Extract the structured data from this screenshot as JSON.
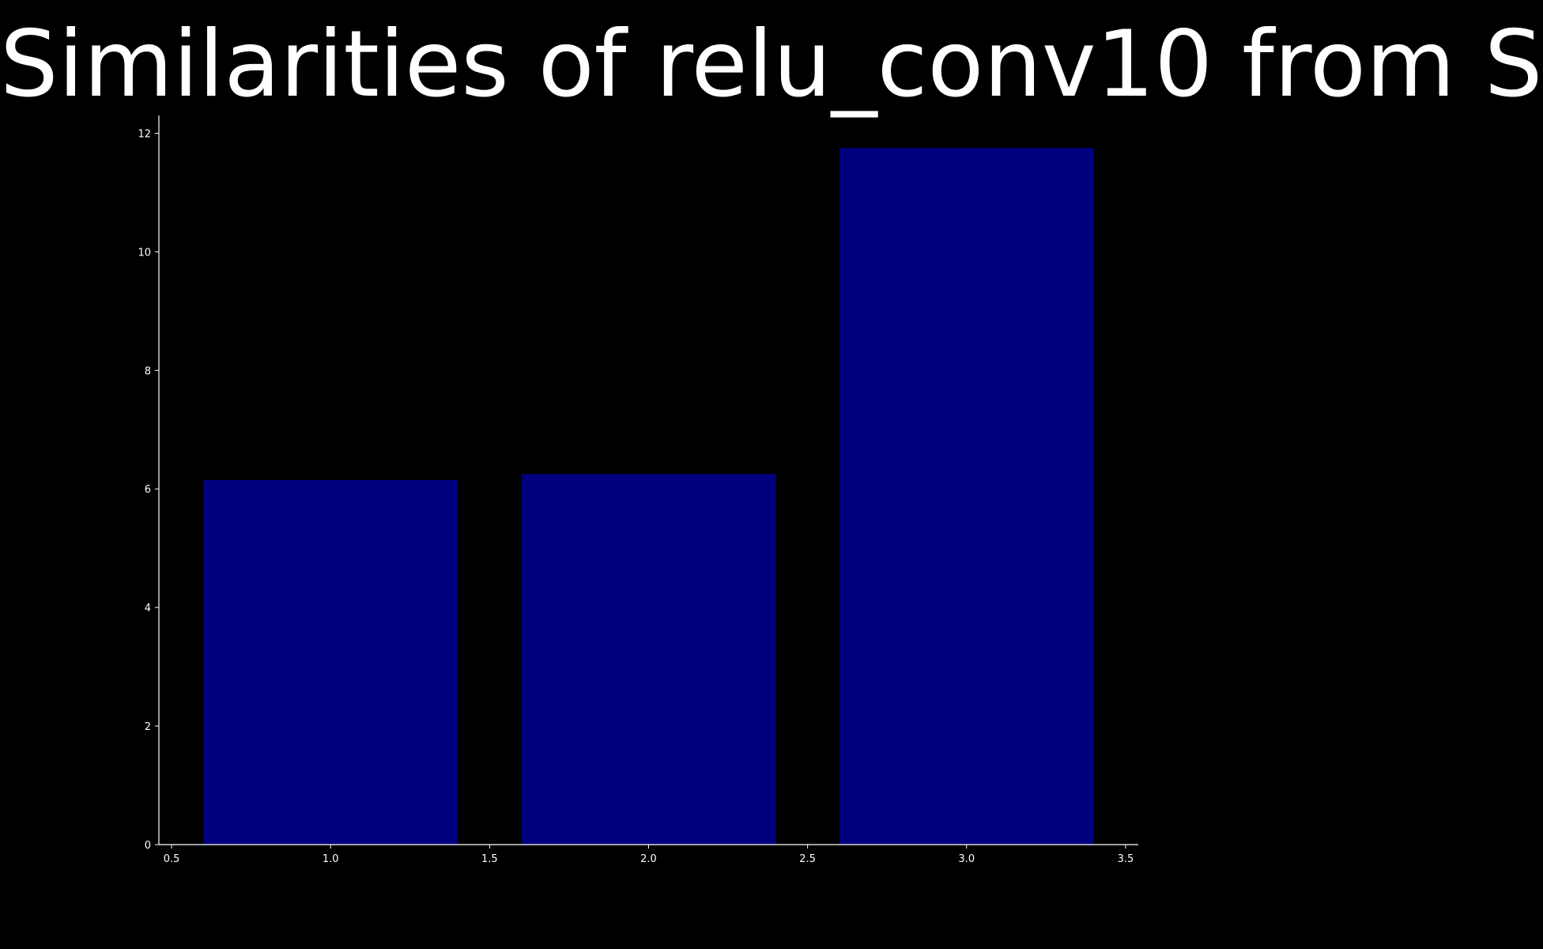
{
  "chart_data": {
    "type": "bar",
    "title": "Similarities of relu_conv10 from S",
    "xlabel": "",
    "ylabel": "",
    "x": [
      1,
      2,
      3
    ],
    "values": [
      6.15,
      6.25,
      11.75
    ],
    "bar_width": 0.8,
    "xlim": [
      0.46,
      3.54
    ],
    "ylim": [
      0,
      12.3
    ],
    "xticks": [
      "0.5",
      "1.0",
      "1.5",
      "2.0",
      "2.5",
      "3.0",
      "3.5"
    ],
    "yticks": [
      "0",
      "2",
      "4",
      "6",
      "8",
      "10",
      "12"
    ],
    "grid": false,
    "legend": "none",
    "colors": {
      "background": "#000000",
      "bar": "#00007f",
      "axis": "#ffffff",
      "text": "#ffffff"
    }
  }
}
